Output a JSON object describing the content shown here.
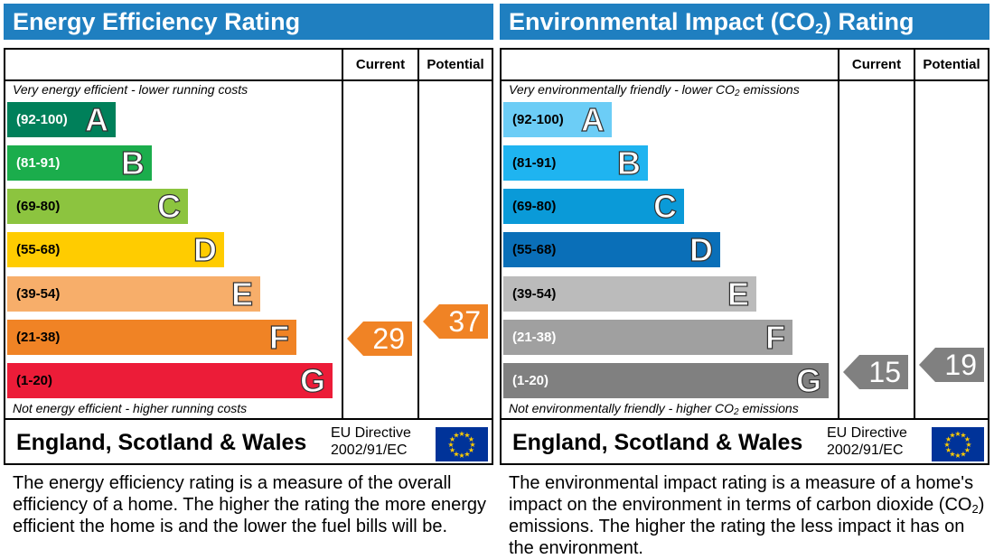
{
  "chart_data": [
    {
      "type": "table",
      "title": "Energy Efficiency Rating",
      "columns": [
        "Current",
        "Potential"
      ],
      "top_note": "Very energy efficient - lower running costs",
      "bottom_note": "Not energy efficient - higher running costs",
      "bands": [
        {
          "range": "(92-100)",
          "letter": "A",
          "color": "#00805a",
          "range_color": "#ffffff"
        },
        {
          "range": "(81-91)",
          "letter": "B",
          "color": "#1bad4c",
          "range_color": "#ffffff"
        },
        {
          "range": "(69-80)",
          "letter": "C",
          "color": "#8cc43f",
          "range_color": "#000000"
        },
        {
          "range": "(55-68)",
          "letter": "D",
          "color": "#ffcc00",
          "range_color": "#000000"
        },
        {
          "range": "(39-54)",
          "letter": "E",
          "color": "#f7ae6a",
          "range_color": "#000000"
        },
        {
          "range": "(21-38)",
          "letter": "F",
          "color": "#f08325",
          "range_color": "#000000"
        },
        {
          "range": "(1-20)",
          "letter": "G",
          "color": "#ec1c38",
          "range_color": "#000000"
        }
      ],
      "current": {
        "value": 29,
        "color": "#f08325"
      },
      "potential": {
        "value": 37,
        "color": "#f08325"
      },
      "footer_region": "England, Scotland & Wales",
      "directive_line1": "EU Directive",
      "directive_line2": "2002/91/EC"
    },
    {
      "type": "table",
      "title": "Environmental Impact (CO2) Rating",
      "columns": [
        "Current",
        "Potential"
      ],
      "top_note": "Very environmentally friendly - lower CO2 emissions",
      "bottom_note": "Not environmentally friendly - higher CO2 emissions",
      "bands": [
        {
          "range": "(92-100)",
          "letter": "A",
          "color": "#6ccdf6",
          "range_color": "#000000"
        },
        {
          "range": "(81-91)",
          "letter": "B",
          "color": "#1fb4f0",
          "range_color": "#000000"
        },
        {
          "range": "(69-80)",
          "letter": "C",
          "color": "#0a9ad8",
          "range_color": "#000000"
        },
        {
          "range": "(55-68)",
          "letter": "D",
          "color": "#0a6fb8",
          "range_color": "#000000"
        },
        {
          "range": "(39-54)",
          "letter": "E",
          "color": "#bbbbbb",
          "range_color": "#000000"
        },
        {
          "range": "(21-38)",
          "letter": "F",
          "color": "#a0a0a0",
          "range_color": "#ffffff"
        },
        {
          "range": "(1-20)",
          "letter": "G",
          "color": "#808080",
          "range_color": "#ffffff"
        }
      ],
      "current": {
        "value": 15,
        "color": "#808080"
      },
      "potential": {
        "value": 19,
        "color": "#808080"
      },
      "footer_region": "England, Scotland & Wales",
      "directive_line1": "EU Directive",
      "directive_line2": "2002/91/EC"
    }
  ],
  "descriptions": {
    "energy": "The energy efficiency rating is a measure of the overall efficiency of a home. The higher the rating the more energy efficient the home is and the lower the fuel bills will be.",
    "environment": "The environmental impact rating is a measure of a home's impact on the environment in terms of carbon dioxide (CO2) emissions. The higher the rating the less impact it has on the environment."
  },
  "icons": {
    "flag": "eu-flag-icon"
  }
}
